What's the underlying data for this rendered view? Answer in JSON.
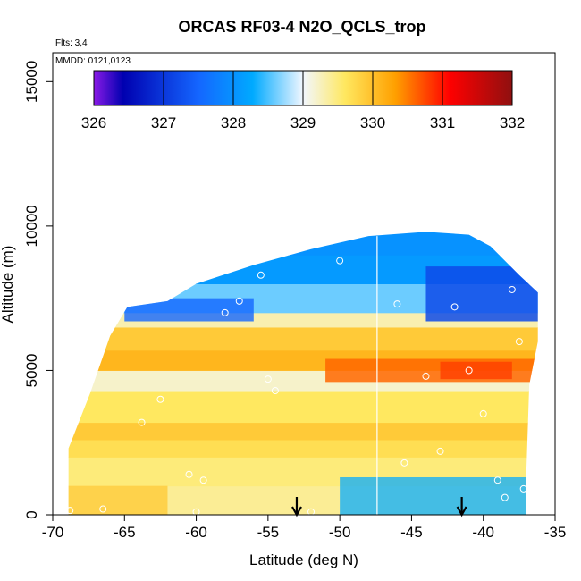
{
  "chart_data": {
    "type": "heatmap",
    "title": "ORCAS RF03-4 N2O_QCLS_trop",
    "flights_note": "Flts: 3,4",
    "date_note": "MMDD: 0121,0123",
    "xlabel": "Latitude (deg N)",
    "ylabel": "Altitude (m)",
    "xlim": [
      -70,
      -35
    ],
    "ylim": [
      0,
      16000
    ],
    "x_ticks": [
      -70,
      -65,
      -60,
      -55,
      -50,
      -45,
      -40,
      -35
    ],
    "y_ticks": [
      0,
      5000,
      10000,
      15000
    ],
    "colorbar": {
      "ticks": [
        326,
        327,
        328,
        329,
        330,
        331,
        332
      ],
      "range": [
        326,
        332
      ],
      "colors": [
        "#8a1ae6",
        "#0000b0",
        "#1466ff",
        "#00aaff",
        "#f2f7ff",
        "#ffe860",
        "#ffa000",
        "#ff0000",
        "#8f1010"
      ],
      "stops": [
        0,
        0.07,
        0.25,
        0.38,
        0.5,
        0.6,
        0.72,
        0.85,
        1.0
      ]
    },
    "domain_outline": [
      [
        -68.9,
        0
      ],
      [
        -68.9,
        2300
      ],
      [
        -67.4,
        4200
      ],
      [
        -66.0,
        6200
      ],
      [
        -64.8,
        7200
      ],
      [
        -62.0,
        7400
      ],
      [
        -60.0,
        8000
      ],
      [
        -56.0,
        8650
      ],
      [
        -52.0,
        9200
      ],
      [
        -48.0,
        9650
      ],
      [
        -44.0,
        9800
      ],
      [
        -41.0,
        9700
      ],
      [
        -39.5,
        9300
      ],
      [
        -37.5,
        8300
      ],
      [
        -36.2,
        7700
      ],
      [
        -36.2,
        6000
      ],
      [
        -36.8,
        4500
      ],
      [
        -37.0,
        1500
      ],
      [
        -37.0,
        0
      ]
    ],
    "field_layers": [
      {
        "alt": 0,
        "value": 329.4
      },
      {
        "alt": 1000,
        "value": 329.5
      },
      {
        "alt": 2000,
        "value": 329.7
      },
      {
        "alt": 2600,
        "value": 329.9
      },
      {
        "alt": 3200,
        "value": 329.6
      },
      {
        "alt": 4300,
        "value": 329.2
      },
      {
        "alt": 5000,
        "value": 330.1
      },
      {
        "alt": 5700,
        "value": 329.9
      },
      {
        "alt": 6500,
        "value": 329.3
      },
      {
        "alt": 7000,
        "value": 328.6
      },
      {
        "alt": 8000,
        "value": 328.1
      },
      {
        "alt": 9000,
        "value": 328.0
      },
      {
        "alt": 10000,
        "value": 328.0
      }
    ],
    "vertical_line_lat": -47.4,
    "arrows_lat": [
      -53.0,
      -41.5
    ],
    "points": [
      [
        -68.8,
        150
      ],
      [
        -66.5,
        200
      ],
      [
        -63.8,
        3200
      ],
      [
        -62.5,
        4000
      ],
      [
        -60.5,
        1400
      ],
      [
        -59.5,
        1200
      ],
      [
        -58.0,
        7000
      ],
      [
        -57.0,
        7400
      ],
      [
        -55.5,
        8300
      ],
      [
        -55.0,
        4700
      ],
      [
        -54.5,
        4300
      ],
      [
        -50.0,
        8800
      ],
      [
        -49.0,
        9700
      ],
      [
        -46.0,
        7300
      ],
      [
        -45.5,
        1800
      ],
      [
        -44.0,
        4800
      ],
      [
        -43.0,
        2200
      ],
      [
        -42.0,
        7200
      ],
      [
        -41.0,
        5000
      ],
      [
        -40.0,
        3500
      ],
      [
        -39.0,
        1200
      ],
      [
        -38.5,
        600
      ],
      [
        -38.0,
        7800
      ],
      [
        -37.5,
        6000
      ],
      [
        -36.5,
        200
      ],
      [
        -37.2,
        900
      ],
      [
        -60.0,
        100
      ],
      [
        -52.0,
        100
      ]
    ]
  }
}
